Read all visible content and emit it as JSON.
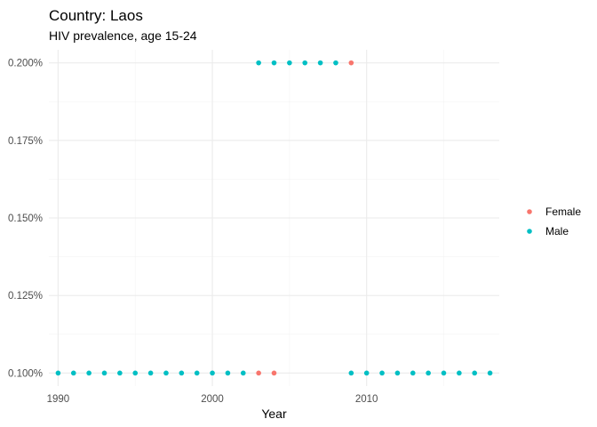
{
  "chart_data": {
    "type": "scatter",
    "title": "Country: Laos",
    "subtitle": "HIV prevalence, age 15-24",
    "xlabel": "Year",
    "ylabel": "",
    "xlim": [
      1989.4,
      2018.6
    ],
    "ylim": [
      0.0958,
      0.2042
    ],
    "x_ticks": [
      1990,
      2000,
      2010
    ],
    "x_minor_ticks": [
      1995,
      2005,
      2015
    ],
    "y_ticks": [
      0.1,
      0.125,
      0.15,
      0.175,
      0.2
    ],
    "y_tick_labels": [
      "0.100%",
      "0.125%",
      "0.150%",
      "0.175%",
      "0.200%"
    ],
    "grid": true,
    "legend_position": "right",
    "series": [
      {
        "name": "Female",
        "color": "#F8766D",
        "points": [
          {
            "x": 2003,
            "y": 0.1
          },
          {
            "x": 2004,
            "y": 0.1
          },
          {
            "x": 2009,
            "y": 0.2
          }
        ]
      },
      {
        "name": "Male",
        "color": "#00BFC4",
        "points": [
          {
            "x": 1990,
            "y": 0.1
          },
          {
            "x": 1991,
            "y": 0.1
          },
          {
            "x": 1992,
            "y": 0.1
          },
          {
            "x": 1993,
            "y": 0.1
          },
          {
            "x": 1994,
            "y": 0.1
          },
          {
            "x": 1995,
            "y": 0.1
          },
          {
            "x": 1996,
            "y": 0.1
          },
          {
            "x": 1997,
            "y": 0.1
          },
          {
            "x": 1998,
            "y": 0.1
          },
          {
            "x": 1999,
            "y": 0.1
          },
          {
            "x": 2000,
            "y": 0.1
          },
          {
            "x": 2001,
            "y": 0.1
          },
          {
            "x": 2002,
            "y": 0.1
          },
          {
            "x": 2003,
            "y": 0.2
          },
          {
            "x": 2004,
            "y": 0.2
          },
          {
            "x": 2005,
            "y": 0.2
          },
          {
            "x": 2006,
            "y": 0.2
          },
          {
            "x": 2007,
            "y": 0.2
          },
          {
            "x": 2008,
            "y": 0.2
          },
          {
            "x": 2009,
            "y": 0.1
          },
          {
            "x": 2010,
            "y": 0.1
          },
          {
            "x": 2011,
            "y": 0.1
          },
          {
            "x": 2012,
            "y": 0.1
          },
          {
            "x": 2013,
            "y": 0.1
          },
          {
            "x": 2014,
            "y": 0.1
          },
          {
            "x": 2015,
            "y": 0.1
          },
          {
            "x": 2016,
            "y": 0.1
          },
          {
            "x": 2017,
            "y": 0.1
          },
          {
            "x": 2018,
            "y": 0.1
          }
        ]
      }
    ]
  }
}
